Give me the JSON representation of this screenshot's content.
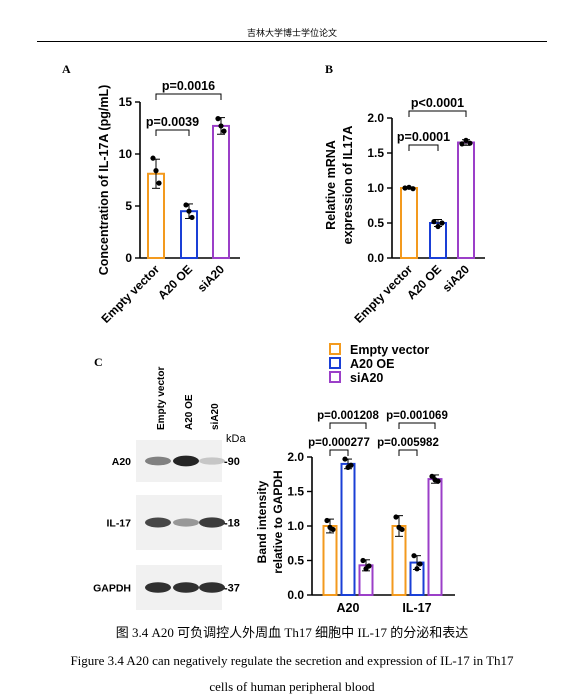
{
  "header": "吉林大学博士学位论文",
  "panels": {
    "A": "A",
    "B": "B",
    "C": "C"
  },
  "blot": {
    "lanes": [
      "Empty vector",
      "A20 OE",
      "siA20"
    ],
    "kda": "kDa",
    "rows": [
      {
        "name": "A20",
        "mw": "-90",
        "intensity": [
          0.55,
          0.95,
          0.25
        ]
      },
      {
        "name": "IL-17",
        "mw": "-18",
        "intensity": [
          0.8,
          0.45,
          0.85
        ]
      },
      {
        "name": "GAPDH",
        "mw": "-37",
        "intensity": [
          0.9,
          0.9,
          0.9
        ]
      }
    ]
  },
  "captions": {
    "cn": "图 3.4 A20 可负调控人外周血 Th17 细胞中 IL-17 的分泌和表达",
    "en1": "Figure 3.4 A20 can negatively regulate the secretion and expression of IL-17 in Th17",
    "en2": "cells of human peripheral blood"
  },
  "chart_data": [
    {
      "type": "bar",
      "panel": "A",
      "categories": [
        "Empty vector",
        "A20 OE",
        "siA20"
      ],
      "colors": [
        "#F39A1E",
        "#1A3FD6",
        "#9B3FC8"
      ],
      "values": [
        8.1,
        4.5,
        12.7
      ],
      "errors": [
        1.4,
        0.7,
        0.8
      ],
      "points": [
        [
          9.6,
          8.4,
          7.2
        ],
        [
          5.1,
          4.5,
          3.9
        ],
        [
          13.4,
          12.7,
          12.2
        ]
      ],
      "ylabel": "Concentration of IL-17A (pg/mL)",
      "ylim": [
        0,
        15
      ],
      "yticks": [
        0,
        5,
        10,
        15
      ],
      "comparisons": [
        {
          "from": 0,
          "to": 1,
          "label": "p=0.0039",
          "y": 13.0
        },
        {
          "from": 0,
          "to": 2,
          "label": "p=0.0016",
          "y": 16.6
        }
      ]
    },
    {
      "type": "bar",
      "panel": "B",
      "categories": [
        "Empty vector",
        "A20 OE",
        "siA20"
      ],
      "colors": [
        "#F39A1E",
        "#1A3FD6",
        "#9B3FC8"
      ],
      "values": [
        1.0,
        0.5,
        1.65
      ],
      "errors": [
        0.01,
        0.05,
        0.04
      ],
      "points": [
        [
          1.0,
          1.01,
          0.99
        ],
        [
          0.52,
          0.45,
          0.5
        ],
        [
          1.63,
          1.68,
          1.64
        ]
      ],
      "ylabel": "Relative mRNA expression of IL17A",
      "ylim": [
        0,
        2.0
      ],
      "yticks": [
        "0.0",
        "0.5",
        "1.0",
        "1.5",
        "2.0"
      ],
      "comparisons": [
        {
          "from": 0,
          "to": 1,
          "label": "p=0.0001",
          "y": 1.58
        },
        {
          "from": 0,
          "to": 2,
          "label": "p<0.0001",
          "y": 2.12
        }
      ]
    },
    {
      "type": "bar",
      "panel": "C",
      "groups": [
        "A20",
        "IL-17"
      ],
      "series": [
        {
          "name": "Empty vector",
          "color": "#F39A1E",
          "values": [
            1.0,
            1.0
          ],
          "errors": [
            0.1,
            0.15
          ],
          "points": [
            [
              1.08,
              0.98,
              0.95
            ],
            [
              1.13,
              0.98,
              0.95
            ]
          ]
        },
        {
          "name": "A20 OE",
          "color": "#1A3FD6",
          "values": [
            1.9,
            0.47
          ],
          "errors": [
            0.07,
            0.1
          ],
          "points": [
            [
              1.97,
              1.85,
              1.88
            ],
            [
              0.57,
              0.38,
              0.45
            ]
          ]
        },
        {
          "name": "siA20",
          "color": "#9B3FC8",
          "values": [
            0.43,
            1.68
          ],
          "errors": [
            0.08,
            0.06
          ],
          "points": [
            [
              0.5,
              0.38,
              0.42
            ],
            [
              1.72,
              1.67,
              1.65
            ]
          ]
        }
      ],
      "ylabel": "Band intensity relative to GAPDH",
      "ylim": [
        0,
        2.0
      ],
      "yticks": [
        "0.0",
        "0.5",
        "1.0",
        "1.5",
        "2.0"
      ],
      "comparisons": [
        {
          "group": 0,
          "from": 0,
          "to": 1,
          "label": "p=0.000277"
        },
        {
          "group": 0,
          "from": 0,
          "to": 2,
          "label": "p=0.001208"
        },
        {
          "group": 1,
          "from": 0,
          "to": 1,
          "label": "p=0.005982"
        },
        {
          "group": 1,
          "from": 0,
          "to": 2,
          "label": "p=0.001069"
        }
      ]
    }
  ]
}
